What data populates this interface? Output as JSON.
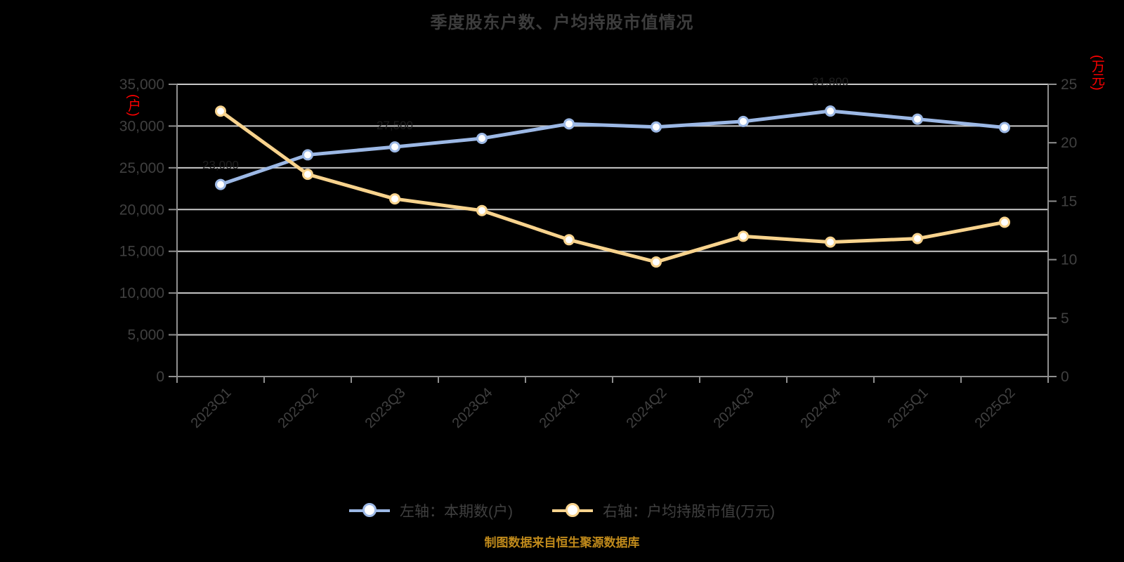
{
  "page": {
    "background": "#000000"
  },
  "title": "季度股东户数、户均持股市值情况",
  "source_note": "制图数据来自恒生聚源数据库",
  "legend": {
    "items": [
      {
        "label": "左轴：本期数(户)",
        "color": "#9cb8e5"
      },
      {
        "label": "右轴：户均持股市值(万元)",
        "color": "#f8d38d"
      }
    ]
  },
  "chart_data": {
    "type": "line",
    "title": "季度股东户数、户均持股市值情况",
    "categories": [
      "2023Q1",
      "2023Q2",
      "2023Q3",
      "2023Q4",
      "2024Q1",
      "2024Q2",
      "2024Q3",
      "2024Q4",
      "2025Q1",
      "2025Q2"
    ],
    "series": [
      {
        "name": "左轴：本期数(户)",
        "axis": "left",
        "color": "#9cb8e5",
        "values": [
          23000,
          26550,
          27500,
          28520,
          30260,
          29890,
          30550,
          31800,
          30830,
          29830
        ]
      },
      {
        "name": "右轴：户均持股市值(万元)",
        "axis": "right",
        "color": "#f8d38d",
        "values": [
          22.7,
          17.3,
          15.2,
          14.2,
          11.7,
          9.8,
          12.0,
          11.5,
          11.8,
          13.2
        ]
      }
    ],
    "left_axis": {
      "min": 0,
      "max": 35000,
      "step": 5000,
      "unit": "(户)",
      "unit_color": "#ff0000",
      "tick_labels": [
        "0",
        "5,000",
        "10,000",
        "15,000",
        "20,000",
        "25,000",
        "30,000",
        "35,000"
      ]
    },
    "right_axis": {
      "min": 0,
      "max": 25,
      "step": 5,
      "unit": "(万元)",
      "unit_color": "#ff0000",
      "tick_labels": [
        "0",
        "5",
        "10",
        "15",
        "20",
        "25"
      ]
    },
    "point_labels": [
      {
        "series": 0,
        "index": 0,
        "text": "23,000",
        "dy": -22
      },
      {
        "series": 0,
        "index": 2,
        "text": "27,500",
        "dy": -25
      },
      {
        "series": 0,
        "index": 7,
        "text": "31,800",
        "dy": -36
      }
    ],
    "grid": true,
    "legend_position": "bottom",
    "colors": {
      "grid_line": "#c9c9c9",
      "axis_line": "#8f8f8f",
      "tick_label": "#404040",
      "point_label": "#1e1e1e",
      "marker_fill": "#ffffff",
      "background": "#000000"
    }
  }
}
